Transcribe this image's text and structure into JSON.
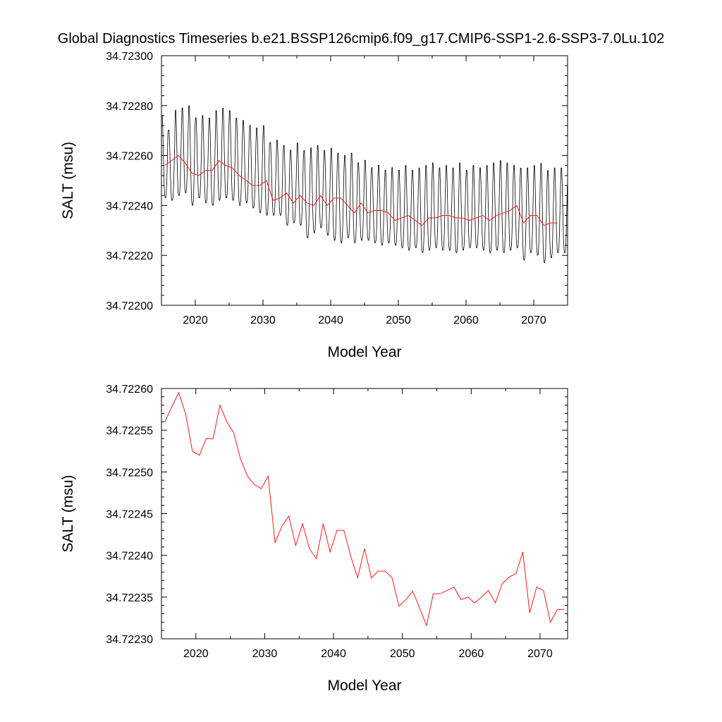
{
  "title": "Global Diagnostics Timeseries b.e21.BSSP126cmip6.f09_g17.CMIP6-SSP1-2.6-SSP3-7.0Lu.102",
  "colors": {
    "monthly": "#000000",
    "annual": "#ff0000",
    "axes": "#000000"
  },
  "chart_data": [
    {
      "type": "line",
      "xlabel": "Model Year",
      "ylabel": "SALT (msu)",
      "xlim": [
        2015,
        2075
      ],
      "ylim": [
        34.722,
        34.723
      ],
      "xticks": [
        2020,
        2030,
        2040,
        2050,
        2060,
        2070
      ],
      "xtick_labels": [
        "2020",
        "2030",
        "2040",
        "2050",
        "2060",
        "2070"
      ],
      "yticks": [
        34.722,
        34.7222,
        34.7224,
        34.7226,
        34.7228,
        34.723
      ],
      "ytick_labels": [
        "34.72200",
        "34.72220",
        "34.72240",
        "34.72260",
        "34.72280",
        "34.72300"
      ],
      "grid": false,
      "series": [
        {
          "kind": "monthly",
          "x": [],
          "values": [],
          "seasonal_cycle_peaks": [
            34.72277,
            34.72271,
            34.72279,
            34.7228,
            34.72281,
            34.72276,
            34.72277,
            34.72276,
            34.72279,
            34.7228,
            34.72279,
            34.72276,
            34.72275,
            34.72273,
            34.72272,
            34.72273,
            34.72266,
            34.72267,
            34.72265,
            34.72263,
            34.72266,
            34.72263,
            34.72264,
            34.72265,
            34.72263,
            34.72264,
            34.72262,
            34.72261,
            34.72262,
            34.72258,
            34.72259,
            34.72256,
            34.72257,
            34.72255,
            34.72256,
            34.72255,
            34.72257,
            34.72255,
            34.72256,
            34.72257,
            34.72258,
            34.72256,
            34.72257,
            34.72256,
            34.72258,
            34.72255,
            34.72257,
            34.72256,
            34.72257,
            34.72258,
            34.72259,
            34.72258,
            34.72257,
            34.72256,
            34.72256,
            34.72257,
            34.72258,
            34.72255,
            34.72256,
            34.72256
          ],
          "seasonal_cycle_troughs": [
            34.72243,
            34.72242,
            34.72244,
            34.72245,
            34.7224,
            34.72243,
            34.72241,
            34.7224,
            34.72242,
            34.72243,
            34.72242,
            34.7224,
            34.72241,
            34.72239,
            34.72237,
            34.72236,
            34.72236,
            34.72236,
            34.72232,
            34.72233,
            34.72232,
            34.72227,
            34.72229,
            34.72231,
            34.72228,
            34.72226,
            34.72225,
            34.72227,
            34.72225,
            34.72226,
            34.72226,
            34.72225,
            34.72224,
            34.72225,
            34.72224,
            34.72223,
            34.72222,
            34.72223,
            34.72221,
            34.72222,
            34.72223,
            34.72222,
            34.72222,
            34.72221,
            34.72222,
            34.72223,
            34.72223,
            34.72222,
            34.72221,
            34.72222,
            34.72221,
            34.72222,
            34.72223,
            34.72218,
            34.72221,
            34.7222,
            34.72217,
            34.72219,
            34.72221,
            34.72221
          ]
        },
        {
          "kind": "annual",
          "x": [
            2015.5,
            2016.5,
            2017.5,
            2018.5,
            2019.5,
            2020.5,
            2021.5,
            2022.5,
            2023.5,
            2024.5,
            2025.5,
            2026.5,
            2027.5,
            2028.5,
            2029.5,
            2030.5,
            2031.5,
            2032.5,
            2033.5,
            2034.5,
            2035.5,
            2036.5,
            2037.5,
            2038.5,
            2039.5,
            2040.5,
            2041.5,
            2042.5,
            2043.5,
            2044.5,
            2045.5,
            2046.5,
            2047.5,
            2048.5,
            2049.5,
            2050.5,
            2051.5,
            2052.5,
            2053.5,
            2054.5,
            2055.5,
            2056.5,
            2057.5,
            2058.5,
            2059.5,
            2060.5,
            2061.5,
            2062.5,
            2063.5,
            2064.5,
            2065.5,
            2066.5,
            2067.5,
            2068.5,
            2069.5,
            2070.5,
            2071.5,
            2072.5,
            2073.5
          ],
          "values": [
            34.72256,
            34.72258,
            34.7226,
            34.72257,
            34.72253,
            34.72252,
            34.72254,
            34.72254,
            34.72258,
            34.72256,
            34.72255,
            34.72252,
            34.7225,
            34.72248,
            34.72248,
            34.7225,
            34.72242,
            34.72243,
            34.72245,
            34.72241,
            34.72244,
            34.72241,
            34.7224,
            34.72244,
            34.7224,
            34.72243,
            34.72243,
            34.7224,
            34.72237,
            34.72241,
            34.72237,
            34.72238,
            34.72238,
            34.72237,
            34.72234,
            34.72235,
            34.72236,
            34.72234,
            34.72232,
            34.72235,
            34.72235,
            34.72236,
            34.72236,
            34.72235,
            34.72235,
            34.72234,
            34.72235,
            34.72236,
            34.72234,
            34.72236,
            34.72237,
            34.72238,
            34.7224,
            34.72233,
            34.72236,
            34.72236,
            34.72232,
            34.72233,
            34.72233
          ]
        }
      ]
    },
    {
      "type": "line",
      "xlabel": "Model Year",
      "ylabel": "SALT (msu)",
      "xlim": [
        2015,
        2074
      ],
      "ylim": [
        34.7223,
        34.7226
      ],
      "xticks": [
        2020,
        2030,
        2040,
        2050,
        2060,
        2070
      ],
      "xtick_labels": [
        "2020",
        "2030",
        "2040",
        "2050",
        "2060",
        "2070"
      ],
      "yticks": [
        34.7223,
        34.72235,
        34.7224,
        34.72245,
        34.7225,
        34.72255,
        34.7226
      ],
      "ytick_labels": [
        "34.72230",
        "34.72235",
        "34.72240",
        "34.72245",
        "34.72250",
        "34.72255",
        "34.72260"
      ],
      "grid": false,
      "series": [
        {
          "kind": "annual",
          "x": [
            2015.5,
            2016.5,
            2017.5,
            2018.5,
            2019.5,
            2020.5,
            2021.5,
            2022.5,
            2023.5,
            2024.5,
            2025.5,
            2026.5,
            2027.5,
            2028.5,
            2029.5,
            2030.5,
            2031.5,
            2032.5,
            2033.5,
            2034.5,
            2035.5,
            2036.5,
            2037.5,
            2038.5,
            2039.5,
            2040.5,
            2041.5,
            2042.5,
            2043.5,
            2044.5,
            2045.5,
            2046.5,
            2047.5,
            2048.5,
            2049.5,
            2050.5,
            2051.5,
            2052.5,
            2053.5,
            2054.5,
            2055.5,
            2056.5,
            2057.5,
            2058.5,
            2059.5,
            2060.5,
            2061.5,
            2062.5,
            2063.5,
            2064.5,
            2065.5,
            2066.5,
            2067.5,
            2068.5,
            2069.5,
            2070.5,
            2071.5,
            2072.5,
            2073.5
          ],
          "values": [
            34.72256,
            34.722578,
            34.722595,
            34.72257,
            34.722525,
            34.72252,
            34.72254,
            34.72254,
            34.72258,
            34.72256,
            34.722547,
            34.722515,
            34.722495,
            34.722485,
            34.72248,
            34.722495,
            34.722415,
            34.722435,
            34.722447,
            34.722412,
            34.722438,
            34.722408,
            34.722396,
            34.722438,
            34.722404,
            34.72243,
            34.72243,
            34.722399,
            34.722373,
            34.722408,
            34.722373,
            34.722381,
            34.722381,
            34.722373,
            34.722339,
            34.722347,
            34.722357,
            34.722337,
            34.722316,
            34.722354,
            34.722354,
            34.722358,
            34.722362,
            34.722347,
            34.72235,
            34.722343,
            34.72235,
            34.722358,
            34.722343,
            34.722366,
            34.722374,
            34.722378,
            34.722404,
            34.722331,
            34.722362,
            34.722358,
            34.72232,
            34.722335,
            34.722335
          ]
        }
      ]
    }
  ]
}
